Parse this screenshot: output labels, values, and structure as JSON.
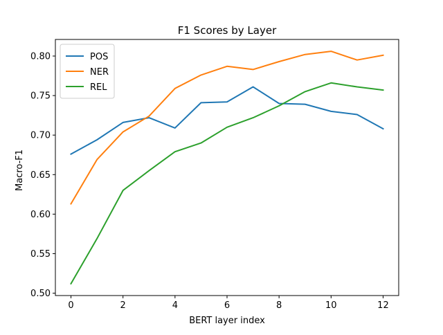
{
  "chart_data": {
    "type": "line",
    "title": "F1 Scores by Layer",
    "xlabel": "BERT layer index",
    "ylabel": "Macro-F1",
    "x": [
      0,
      1,
      2,
      3,
      4,
      5,
      6,
      7,
      8,
      9,
      10,
      11,
      12
    ],
    "xlim": [
      -0.6,
      12.6
    ],
    "ylim": [
      0.497,
      0.821
    ],
    "xticks": [
      0,
      2,
      4,
      6,
      8,
      10,
      12
    ],
    "xtick_labels": [
      "0",
      "2",
      "4",
      "6",
      "8",
      "10",
      "12"
    ],
    "yticks": [
      0.5,
      0.55,
      0.6,
      0.65,
      0.7,
      0.75,
      0.8
    ],
    "ytick_labels": [
      "0.50",
      "0.55",
      "0.60",
      "0.65",
      "0.70",
      "0.75",
      "0.80"
    ],
    "grid": false,
    "legend_position": "top-left",
    "series": [
      {
        "name": "POS",
        "color": "#1f77b4",
        "values": [
          0.676,
          0.694,
          0.716,
          0.722,
          0.709,
          0.741,
          0.742,
          0.761,
          0.74,
          0.739,
          0.73,
          0.726,
          0.708
        ]
      },
      {
        "name": "NER",
        "color": "#ff7f0e",
        "values": [
          0.613,
          0.669,
          0.704,
          0.724,
          0.759,
          0.776,
          0.787,
          0.783,
          0.793,
          0.802,
          0.806,
          0.795,
          0.801
        ]
      },
      {
        "name": "REL",
        "color": "#2ca02c",
        "values": [
          0.512,
          0.569,
          0.63,
          0.655,
          0.679,
          0.69,
          0.71,
          0.722,
          0.737,
          0.755,
          0.766,
          0.761,
          0.757
        ]
      }
    ]
  }
}
